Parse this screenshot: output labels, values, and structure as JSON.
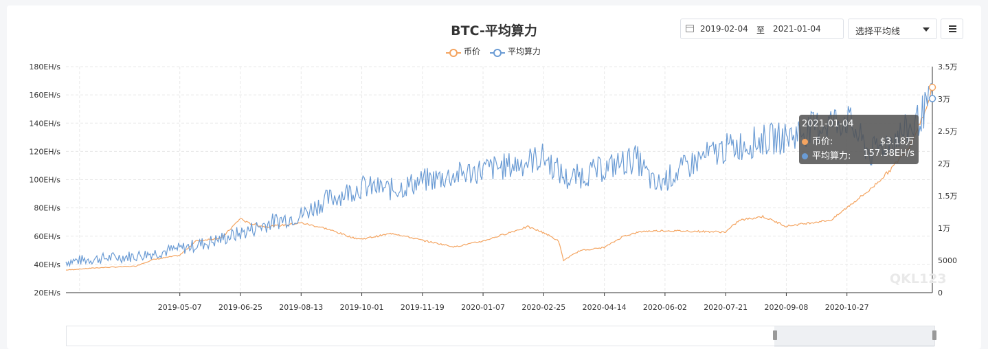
{
  "header": {
    "title": "BTC-平均算力",
    "date_from": "2019-02-04",
    "date_sep": "至",
    "date_to": "2021-01-04",
    "ma_select": "选择平均线",
    "menu_icon": "hamburger-menu-icon"
  },
  "colors": {
    "price": "#f4a460",
    "hashrate": "#6a9bd4",
    "grid": "#e8e8e8"
  },
  "legend": [
    {
      "name": "币价",
      "color": "#f4a460"
    },
    {
      "name": "平均算力",
      "color": "#6a9bd4"
    }
  ],
  "tooltip": {
    "date": "2021-01-04",
    "price_label": "币价:",
    "price_value": "$3.18万",
    "hash_label": "平均算力:",
    "hash_value": "157.38EH/s"
  },
  "watermark": "QKL123",
  "chart_data": {
    "type": "line",
    "title": "BTC-平均算力",
    "x_range": [
      "2019-02-04",
      "2021-01-04"
    ],
    "x_tick_labels": [
      "2019-05-07",
      "2019-06-25",
      "2019-08-13",
      "2019-10-01",
      "2019-11-19",
      "2020-01-07",
      "2020-02-25",
      "2020-04-14",
      "2020-06-02",
      "2020-07-21",
      "2020-09-08",
      "2020-10-27"
    ],
    "y_left": {
      "min": 20,
      "max": 180,
      "step": 20,
      "tick_labels": [
        "20EH/s",
        "40EH/s",
        "60EH/s",
        "80EH/s",
        "100EH/s",
        "120EH/s",
        "140EH/s",
        "160EH/s",
        "180EH/s"
      ]
    },
    "y_right": {
      "min": 0,
      "max": 35000,
      "step": 5000,
      "tick_labels": [
        "0",
        "5000",
        "1万",
        "1.5万",
        "2万",
        "2.5万",
        "3万",
        "3.5万"
      ]
    },
    "grid": true,
    "legend_position": "top-center",
    "series": [
      {
        "name": "币价",
        "axis": "right",
        "points": [
          [
            "2019-02-04",
            3500
          ],
          [
            "2019-03-01",
            3850
          ],
          [
            "2019-04-01",
            4100
          ],
          [
            "2019-04-15",
            5100
          ],
          [
            "2019-05-07",
            5800
          ],
          [
            "2019-05-20",
            8000
          ],
          [
            "2019-06-10",
            8500
          ],
          [
            "2019-06-25",
            11500
          ],
          [
            "2019-07-01",
            10800
          ],
          [
            "2019-07-15",
            10200
          ],
          [
            "2019-08-01",
            10500
          ],
          [
            "2019-08-13",
            10800
          ],
          [
            "2019-09-01",
            10000
          ],
          [
            "2019-09-24",
            8500
          ],
          [
            "2019-10-01",
            8300
          ],
          [
            "2019-10-26",
            9200
          ],
          [
            "2019-11-19",
            8100
          ],
          [
            "2019-12-15",
            7100
          ],
          [
            "2020-01-07",
            8000
          ],
          [
            "2020-02-12",
            10200
          ],
          [
            "2020-02-25",
            9300
          ],
          [
            "2020-03-08",
            8000
          ],
          [
            "2020-03-12",
            5000
          ],
          [
            "2020-03-25",
            6500
          ],
          [
            "2020-04-14",
            7000
          ],
          [
            "2020-04-30",
            8800
          ],
          [
            "2020-05-15",
            9500
          ],
          [
            "2020-06-02",
            9600
          ],
          [
            "2020-07-21",
            9400
          ],
          [
            "2020-08-01",
            11200
          ],
          [
            "2020-08-20",
            11800
          ],
          [
            "2020-09-08",
            10300
          ],
          [
            "2020-10-15",
            11300
          ],
          [
            "2020-10-27",
            13200
          ],
          [
            "2020-11-15",
            16000
          ],
          [
            "2020-12-01",
            19000
          ],
          [
            "2020-12-17",
            22800
          ],
          [
            "2020-12-31",
            29000
          ],
          [
            "2021-01-04",
            31800
          ]
        ]
      },
      {
        "name": "平均算力",
        "axis": "left",
        "points": [
          [
            "2019-02-04",
            42
          ],
          [
            "2019-03-01",
            44
          ],
          [
            "2019-04-01",
            46
          ],
          [
            "2019-05-07",
            51
          ],
          [
            "2019-06-01",
            56
          ],
          [
            "2019-06-25",
            62
          ],
          [
            "2019-07-20",
            70
          ],
          [
            "2019-08-13",
            75
          ],
          [
            "2019-09-01",
            85
          ],
          [
            "2019-10-01",
            95
          ],
          [
            "2019-10-26",
            93
          ],
          [
            "2019-11-19",
            99
          ],
          [
            "2019-12-15",
            103
          ],
          [
            "2020-01-07",
            107
          ],
          [
            "2020-01-30",
            110
          ],
          [
            "2020-02-25",
            116
          ],
          [
            "2020-03-15",
            100
          ],
          [
            "2020-04-14",
            108
          ],
          [
            "2020-05-10",
            115
          ],
          [
            "2020-05-25",
            95
          ],
          [
            "2020-06-02",
            100
          ],
          [
            "2020-07-01",
            115
          ],
          [
            "2020-07-21",
            122
          ],
          [
            "2020-08-20",
            128
          ],
          [
            "2020-09-08",
            130
          ],
          [
            "2020-10-10",
            140
          ],
          [
            "2020-10-27",
            143
          ],
          [
            "2020-11-15",
            118
          ],
          [
            "2020-12-01",
            128
          ],
          [
            "2020-12-20",
            138
          ],
          [
            "2021-01-04",
            157.38
          ]
        ]
      }
    ],
    "highlight": {
      "date": "2021-01-04",
      "price": 31800,
      "hashrate": 157.38
    }
  }
}
